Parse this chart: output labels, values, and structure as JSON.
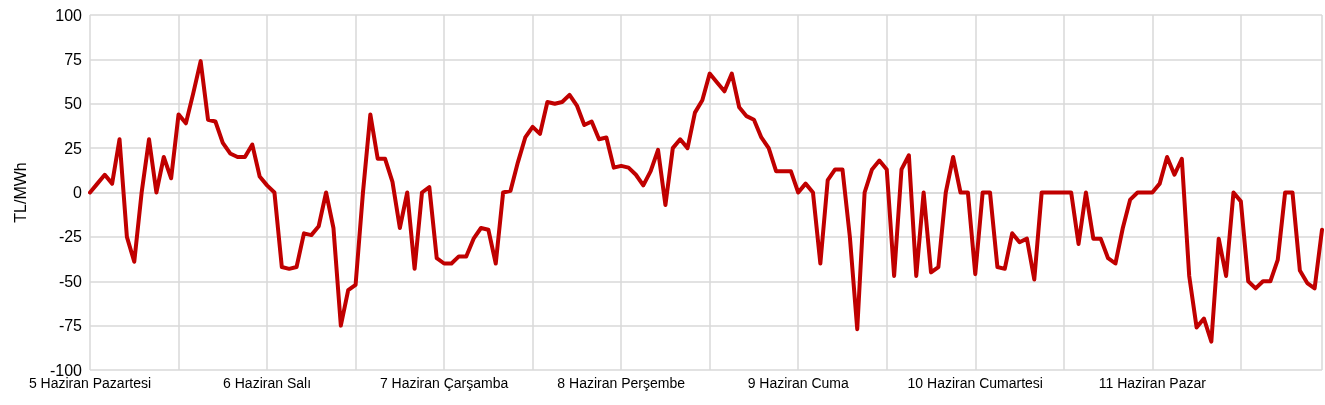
{
  "chart_data": {
    "type": "line",
    "ylabel": "TL/MWh",
    "categories": [
      "5 Haziran Pazartesi",
      null,
      null,
      null,
      null,
      null,
      null,
      null,
      null,
      null,
      null,
      null,
      null,
      null,
      null,
      null,
      null,
      null,
      null,
      null,
      null,
      null,
      null,
      null,
      "6 Haziran Salı",
      null,
      null,
      null,
      null,
      null,
      null,
      null,
      null,
      null,
      null,
      null,
      null,
      null,
      null,
      null,
      null,
      null,
      null,
      null,
      null,
      null,
      null,
      null,
      "7 Haziran Çarşamba",
      null,
      null,
      null,
      null,
      null,
      null,
      null,
      null,
      null,
      null,
      null,
      null,
      null,
      null,
      null,
      null,
      null,
      null,
      null,
      null,
      null,
      null,
      null,
      "8 Haziran Perşembe",
      null,
      null,
      null,
      null,
      null,
      null,
      null,
      null,
      null,
      null,
      null,
      null,
      null,
      null,
      null,
      null,
      null,
      null,
      null,
      null,
      null,
      null,
      null,
      "9 Haziran Cuma",
      null,
      null,
      null,
      null,
      null,
      null,
      null,
      null,
      null,
      null,
      null,
      null,
      null,
      null,
      null,
      null,
      null,
      null,
      null,
      null,
      null,
      null,
      null,
      "10 Haziran Cumartesi",
      null,
      null,
      null,
      null,
      null,
      null,
      null,
      null,
      null,
      null,
      null,
      null,
      null,
      null,
      null,
      null,
      null,
      null,
      null,
      null,
      null,
      null,
      null,
      "11 Haziran Pazar",
      null,
      null,
      null,
      null,
      null,
      null,
      null,
      null,
      null,
      null,
      null,
      null,
      null,
      null,
      null,
      null,
      null,
      null,
      null,
      null,
      null,
      null,
      null
    ],
    "series": [
      {
        "color": "#c00000",
        "values": [
          0,
          5,
          10,
          5,
          30,
          -25,
          -39,
          0,
          30,
          0,
          20,
          8,
          44,
          39,
          56,
          74,
          41,
          40,
          28,
          22,
          20,
          20,
          27,
          9,
          4,
          0,
          -42,
          -43,
          -42,
          -23,
          -24,
          -19,
          0,
          -20,
          -75,
          -55,
          -52,
          0,
          44,
          19,
          19,
          6,
          -20,
          0,
          -43,
          0,
          3,
          -37,
          -40,
          -40,
          -36,
          -36,
          -26,
          -20,
          -21,
          -40,
          0,
          1,
          17,
          31,
          37,
          33,
          51,
          50,
          51,
          55,
          49,
          38,
          40,
          30,
          31,
          14,
          15,
          14,
          10,
          4,
          12,
          24,
          -7,
          25,
          30,
          25,
          45,
          52,
          67,
          62,
          57,
          67,
          48,
          43,
          41,
          31,
          25,
          12,
          12,
          12,
          0,
          5,
          0,
          -40,
          7,
          13,
          13,
          -25,
          -77,
          0,
          13,
          18,
          13,
          -47,
          13,
          21,
          -47,
          0,
          -45,
          -42,
          0,
          20,
          0,
          0,
          -46,
          0,
          0,
          -42,
          -43,
          -23,
          -28,
          -26,
          -49,
          0,
          0,
          0,
          0,
          0,
          -29,
          0,
          -26,
          -26,
          -37,
          -40,
          -20,
          -4,
          0,
          0,
          0,
          5,
          20,
          10,
          19,
          -47,
          -76,
          -71,
          -84,
          -26,
          -47,
          0,
          -5,
          -50,
          -54,
          -50,
          -50,
          -38,
          0,
          0,
          -44,
          -51,
          -54,
          -21
        ]
      }
    ],
    "ylim": [
      -100,
      100
    ],
    "yticks": [
      -100,
      -75,
      -50,
      -25,
      0,
      25,
      50,
      75,
      100
    ],
    "grid": true,
    "marker": "none",
    "line_style": "solid"
  }
}
